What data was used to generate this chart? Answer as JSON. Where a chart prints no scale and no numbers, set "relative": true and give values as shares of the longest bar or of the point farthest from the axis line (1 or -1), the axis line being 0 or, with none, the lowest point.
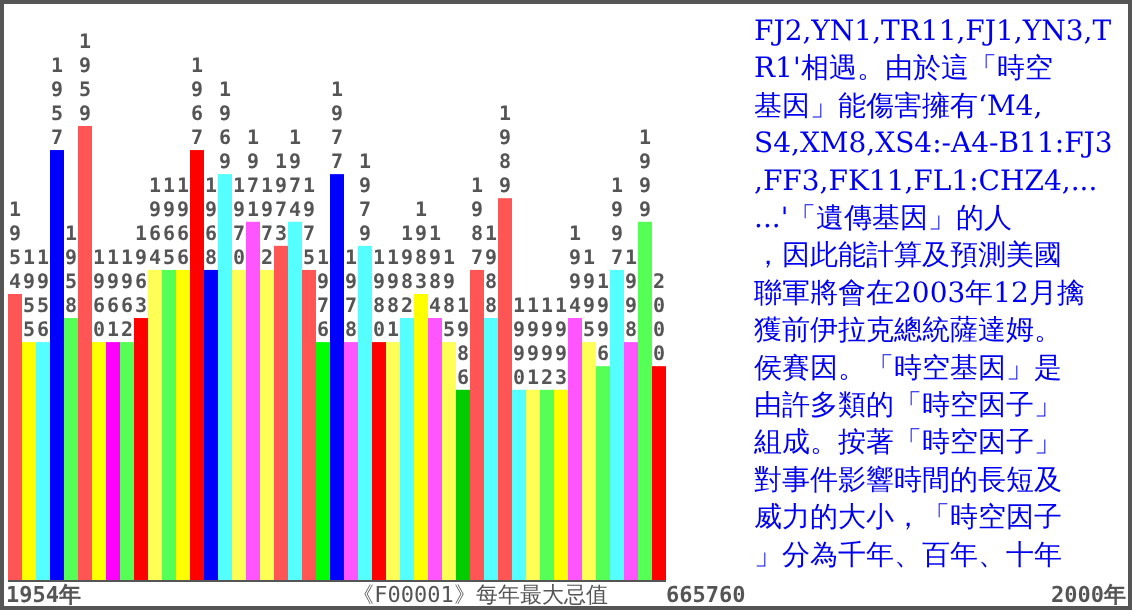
{
  "chart_data": {
    "type": "bar",
    "relative": true,
    "xlabel": "《F00001》每年最大忌值",
    "categories": [
      "1954",
      "1955",
      "1956",
      "1957",
      "1958",
      "1959",
      "1960",
      "1961",
      "1962",
      "1963",
      "1964",
      "1965",
      "1966",
      "1967",
      "1968",
      "1969",
      "1970",
      "1971",
      "1972",
      "1973",
      "1974",
      "1975",
      "1976",
      "1977",
      "1978",
      "1979",
      "1980",
      "1981",
      "1982",
      "1983",
      "1984",
      "1985",
      "1986",
      "1987",
      "1988",
      "1989",
      "1990",
      "1991",
      "1992",
      "1993",
      "1994",
      "1995",
      "1996",
      "1997",
      "1998",
      "1999",
      "2000"
    ],
    "values": [
      0.63,
      0.524,
      0.524,
      0.947,
      0.577,
      1,
      0.524,
      0.524,
      0.524,
      0.577,
      0.683,
      0.683,
      0.683,
      0.947,
      0.683,
      0.894,
      0.683,
      0.789,
      0.683,
      0.736,
      0.789,
      0.683,
      0.524,
      0.894,
      0.524,
      0.736,
      0.524,
      0.524,
      0.577,
      0.63,
      0.577,
      0.524,
      0.419,
      0.683,
      0.577,
      0.841,
      0.419,
      0.419,
      0.419,
      0.419,
      0.577,
      0.524,
      0.471,
      0.683,
      0.524,
      0.789,
      0.471
    ],
    "colors": [
      "#ff5555",
      "#ffff00",
      "#55ffff",
      "#0000ff",
      "#55ff55",
      "#ff5555",
      "#ffff00",
      "#ff00ff",
      "#55ff55",
      "#ff0000",
      "#ffff55",
      "#55ff55",
      "#ffff00",
      "#ff0000",
      "#0000ff",
      "#55ffff",
      "#ffff55",
      "#ff55ff",
      "#ffff55",
      "#ff5555",
      "#55ffff",
      "#ff5555",
      "#00ff00",
      "#0000ff",
      "#ff55ff",
      "#55ffff",
      "#ff0000",
      "#ffff55",
      "#55ffff",
      "#ffff00",
      "#ff55ff",
      "#ffff55",
      "#00cc00",
      "#ff5555",
      "#55ffff",
      "#ff5555",
      "#55ffff",
      "#ffff55",
      "#55ff55",
      "#ffff00",
      "#ff55ff",
      "#ffff55",
      "#55ff55",
      "#55ffff",
      "#ff55ff",
      "#55ff55",
      "#ff0000"
    ],
    "annotations": [
      "1954年",
      "665760",
      "2000年",
      "FJ2,YN1,TR11,FJ1,YN3,T",
      "R1'相遇。由於這「時空",
      "基因」能傷害擁有‘M4,",
      "S4,XM8,XS4:-A4-B11:FJ3",
      ",FF3,FK11,FL1:CHZ4,...",
      "...'「遺傳基因」的人",
      "，因此能計算及預測美國",
      "聯軍將會在2003年12月擒",
      "獲前伊拉克總統薩達姆。",
      "侯賽因。「時空基因」是",
      "由許多類的「時空因子」",
      "組成。按著「時空因子」",
      "對事件影響時間的長短及",
      "威力的大小，「時空因子",
      "」分為千年、百年、十年"
    ]
  }
}
